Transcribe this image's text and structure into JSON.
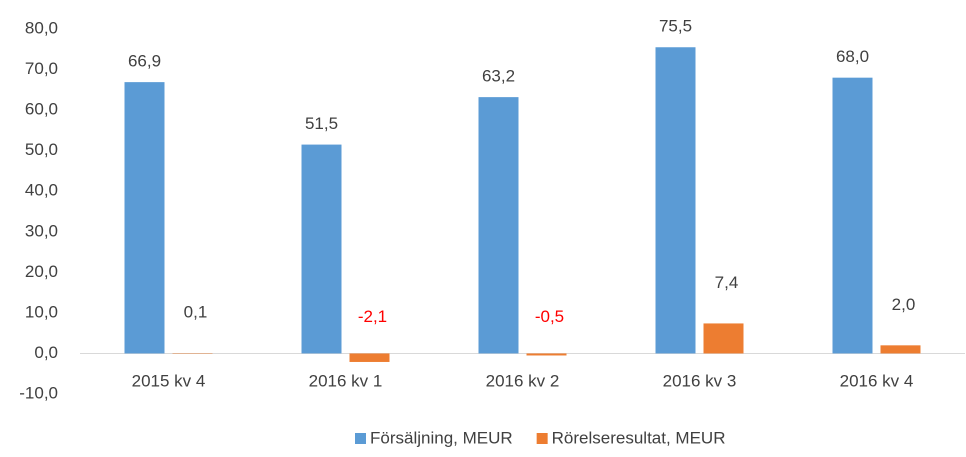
{
  "chart_data": {
    "type": "bar",
    "categories": [
      "2015 kv 4",
      "2016 kv 1",
      "2016 kv 2",
      "2016 kv 3",
      "2016 kv 4"
    ],
    "series": [
      {
        "name": "Försäljning, MEUR",
        "color": "#5b9bd5",
        "values": [
          66.9,
          51.5,
          63.2,
          75.5,
          68.0
        ],
        "value_labels": [
          "66,9",
          "51,5",
          "63,2",
          "75,5",
          "68,0"
        ]
      },
      {
        "name": "Rörelseresultat, MEUR",
        "color": "#ed7d31",
        "values": [
          0.1,
          -2.1,
          -0.5,
          7.4,
          2.0
        ],
        "value_labels": [
          "0,1",
          "-2,1",
          "-0,5",
          "7,4",
          "2,0"
        ]
      }
    ],
    "ylim": [
      -10,
      80
    ],
    "yticks": [
      {
        "value": -10,
        "label": "-10,0"
      },
      {
        "value": 0,
        "label": "0,0"
      },
      {
        "value": 10,
        "label": "10,0"
      },
      {
        "value": 20,
        "label": "20,0"
      },
      {
        "value": 30,
        "label": "30,0"
      },
      {
        "value": 40,
        "label": "40,0"
      },
      {
        "value": 50,
        "label": "50,0"
      },
      {
        "value": 60,
        "label": "60,0"
      },
      {
        "value": 70,
        "label": "70,0"
      },
      {
        "value": 80,
        "label": "80,0"
      }
    ],
    "grid": false,
    "legend": "bottom",
    "negative_label_color": "#ff0000"
  }
}
